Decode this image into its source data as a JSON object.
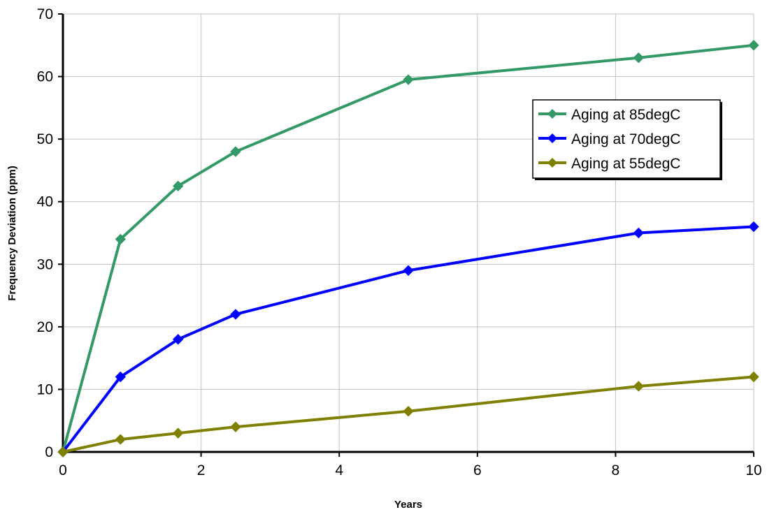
{
  "chart_data": {
    "type": "line",
    "title": "",
    "xlabel": "Years",
    "ylabel": "Frequency Deviation (ppm)",
    "xlim": [
      0,
      10
    ],
    "ylim": [
      0,
      70
    ],
    "xticks": [
      "0",
      "2",
      "4",
      "6",
      "8",
      "10"
    ],
    "yticks": [
      "0",
      "10",
      "20",
      "30",
      "40",
      "50",
      "60",
      "70"
    ],
    "grid": true,
    "legend_position": "right",
    "x": [
      0,
      0.833,
      1.667,
      2.5,
      5,
      8.333,
      10
    ],
    "series": [
      {
        "name": "Aging at 85degC",
        "color": "#339966",
        "marker": "diamond",
        "values": [
          0,
          34,
          42.5,
          48,
          59.5,
          63,
          65
        ]
      },
      {
        "name": "Aging at 70degC",
        "color": "#0000FF",
        "marker": "diamond",
        "values": [
          0,
          12,
          18,
          22,
          29,
          35,
          36
        ]
      },
      {
        "name": "Aging at 55degC",
        "color": "#808000",
        "marker": "diamond",
        "values": [
          0,
          2,
          3,
          4,
          6.5,
          10.5,
          12
        ]
      }
    ]
  }
}
